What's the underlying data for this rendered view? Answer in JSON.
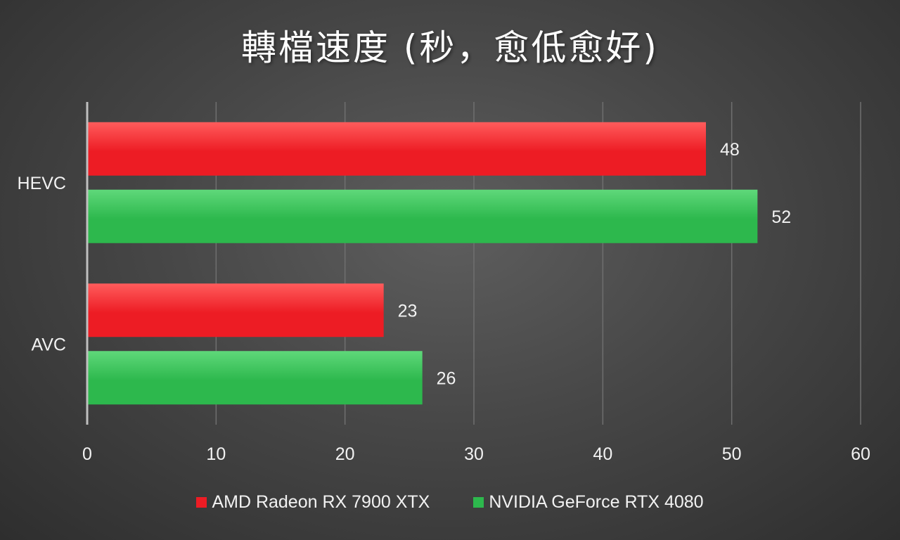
{
  "chart_data": {
    "type": "bar",
    "orientation": "horizontal",
    "title": "轉檔速度 (秒，愈低愈好)",
    "categories": [
      "HEVC",
      "AVC"
    ],
    "series": [
      {
        "name": "AMD Radeon RX 7900 XTX",
        "values": [
          48,
          23
        ],
        "color": "#ed1c24",
        "color_light": "#ff5c5c"
      },
      {
        "name": "NVIDIA GeForce RTX 4080",
        "values": [
          52,
          26
        ],
        "color": "#2db84d",
        "color_light": "#5fd87a"
      }
    ],
    "xlim": [
      0,
      60
    ],
    "xticks": [
      "0",
      "10",
      "20",
      "30",
      "40",
      "50",
      "60"
    ],
    "xlabel": "",
    "ylabel": "",
    "grid": "vertical",
    "legend_position": "bottom",
    "data_labels": true
  }
}
